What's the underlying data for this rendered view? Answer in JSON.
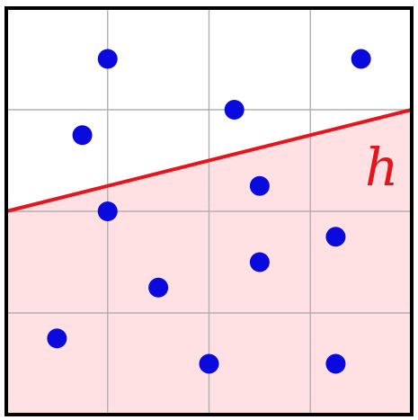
{
  "diagram": {
    "grid": {
      "cols": 4,
      "rows": 4
    },
    "hypothesis": {
      "label": "h",
      "line": {
        "from": [
          0,
          2
        ],
        "to": [
          4,
          3
        ]
      },
      "line_color": "#e4161b",
      "shaded_side": "below",
      "shade_color": "#ffe1e4"
    },
    "points": [
      [
        1,
        3.5
      ],
      [
        3.5,
        3.5
      ],
      [
        0.75,
        2.75
      ],
      [
        2.25,
        3.0
      ],
      [
        2.5,
        2.25
      ],
      [
        1,
        2
      ],
      [
        3.25,
        1.75
      ],
      [
        2.5,
        1.5
      ],
      [
        1.5,
        1.25
      ],
      [
        0.5,
        0.75
      ],
      [
        2,
        0.5
      ],
      [
        3.25,
        0.5
      ]
    ],
    "point_color": "#0a0adf",
    "frame_color": "#000000",
    "grid_color": "#b0b0b0"
  }
}
